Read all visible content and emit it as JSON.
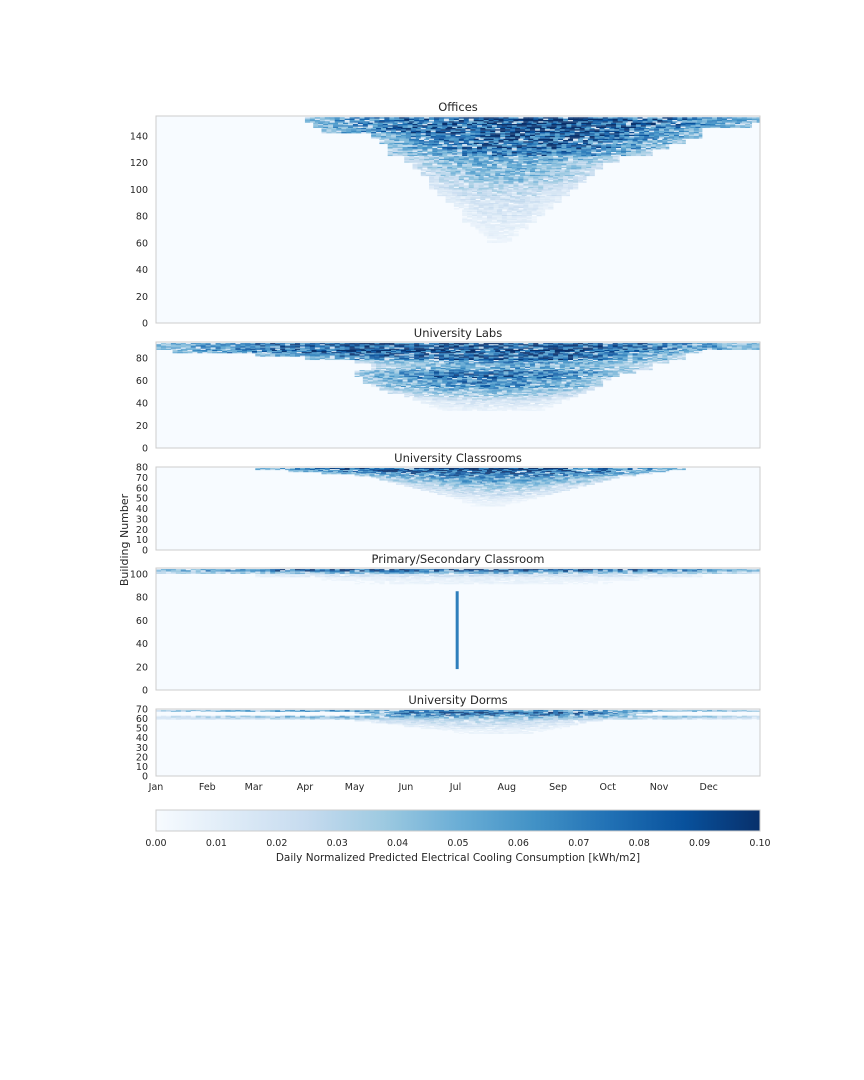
{
  "figure": {
    "ylabel": "Building Number",
    "colorbar_label": "Daily Normalized Predicted Electrical Cooling Consumption [kWh/m2]"
  },
  "chart_data": [
    {
      "type": "heatmap",
      "title": "Offices",
      "xlabel": "",
      "ylabel": "Building Number",
      "xlim": [
        0,
        365
      ],
      "ylim": [
        0,
        155
      ],
      "yticks": [
        0,
        20,
        40,
        60,
        80,
        100,
        120,
        140
      ],
      "z_range": [
        0.0,
        0.1
      ],
      "colormap": "Blues",
      "profile": {
        "rows_y": [
          154,
          150,
          146,
          142,
          138,
          134,
          130,
          125,
          120,
          115,
          110,
          105,
          100,
          95,
          90,
          85,
          80,
          75,
          70,
          65,
          60
        ],
        "peak_values": [
          0.1,
          0.1,
          0.1,
          0.095,
          0.09,
          0.09,
          0.08,
          0.06,
          0.055,
          0.05,
          0.045,
          0.035,
          0.03,
          0.025,
          0.02,
          0.02,
          0.015,
          0.012,
          0.01,
          0.008,
          0.005
        ],
        "active_start_day": [
          90,
          95,
          100,
          130,
          135,
          140,
          140,
          150,
          155,
          160,
          165,
          165,
          170,
          175,
          180,
          185,
          185,
          190,
          195,
          200,
          205
        ],
        "active_end_day": [
          365,
          360,
          330,
          330,
          320,
          310,
          300,
          280,
          270,
          265,
          260,
          255,
          250,
          245,
          240,
          235,
          230,
          225,
          220,
          215,
          210
        ]
      }
    },
    {
      "type": "heatmap",
      "title": "University Labs",
      "xlabel": "",
      "ylabel": "Building Number",
      "xlim": [
        0,
        365
      ],
      "ylim": [
        0,
        94
      ],
      "yticks": [
        0,
        20,
        40,
        60,
        80
      ],
      "z_range": [
        0.0,
        0.1
      ],
      "colormap": "Blues",
      "profile": {
        "rows_y": [
          93,
          90,
          87,
          84,
          81,
          78,
          75,
          72,
          69,
          66,
          63,
          60,
          57,
          54,
          51,
          48,
          45,
          42,
          39,
          36
        ],
        "peak_values": [
          0.1,
          0.1,
          0.1,
          0.095,
          0.09,
          0.07,
          0.06,
          0.06,
          0.08,
          0.085,
          0.08,
          0.075,
          0.07,
          0.06,
          0.05,
          0.04,
          0.03,
          0.02,
          0.015,
          0.01
        ],
        "active_start_day": [
          0,
          0,
          10,
          60,
          90,
          120,
          130,
          130,
          120,
          120,
          125,
          125,
          130,
          135,
          140,
          150,
          155,
          160,
          165,
          170
        ],
        "active_end_day": [
          365,
          365,
          330,
          320,
          320,
          310,
          300,
          300,
          290,
          280,
          275,
          270,
          270,
          265,
          260,
          255,
          250,
          245,
          240,
          235
        ]
      }
    },
    {
      "type": "heatmap",
      "title": "University Classrooms",
      "xlabel": "",
      "ylabel": "Building Number",
      "xlim": [
        0,
        365
      ],
      "ylim": [
        0,
        80
      ],
      "yticks": [
        0,
        10,
        20,
        30,
        40,
        50,
        60,
        70,
        80
      ],
      "z_range": [
        0.0,
        0.1
      ],
      "colormap": "Blues",
      "profile": {
        "rows_y": [
          79,
          77,
          75,
          73,
          71,
          69,
          67,
          65,
          63,
          61,
          59,
          57,
          55,
          53,
          51,
          49,
          47,
          45
        ],
        "peak_values": [
          0.1,
          0.1,
          0.09,
          0.08,
          0.07,
          0.06,
          0.06,
          0.05,
          0.045,
          0.04,
          0.035,
          0.03,
          0.025,
          0.02,
          0.015,
          0.012,
          0.01,
          0.008
        ],
        "active_start_day": [
          60,
          80,
          100,
          120,
          130,
          135,
          140,
          145,
          150,
          155,
          160,
          165,
          170,
          175,
          180,
          185,
          185,
          190
        ],
        "active_end_day": [
          320,
          310,
          300,
          290,
          280,
          275,
          270,
          265,
          260,
          255,
          250,
          245,
          240,
          235,
          230,
          225,
          220,
          215
        ]
      }
    },
    {
      "type": "heatmap",
      "title": "Primary/Secondary Classroom",
      "xlabel": "",
      "ylabel": "Building Number",
      "xlim": [
        0,
        365
      ],
      "ylim": [
        0,
        105
      ],
      "yticks": [
        0,
        20,
        40,
        60,
        80,
        100
      ],
      "z_range": [
        0.0,
        0.1
      ],
      "colormap": "Blues",
      "profile": {
        "rows_y": [
          104,
          102,
          100,
          97,
          94
        ],
        "peak_values": [
          0.1,
          0.06,
          0.02,
          0.01,
          0.008
        ],
        "active_start_day": [
          0,
          0,
          60,
          100,
          120
        ],
        "active_end_day": [
          365,
          365,
          330,
          300,
          280
        ],
        "column_feature": {
          "day": 182,
          "y_from": 18,
          "y_to": 85,
          "value": 0.07
        }
      }
    },
    {
      "type": "heatmap",
      "title": "University Dorms",
      "xlabel": "",
      "ylabel": "Building Number",
      "xlim": [
        0,
        365
      ],
      "ylim": [
        0,
        70
      ],
      "yticks": [
        0,
        10,
        20,
        30,
        40,
        50,
        60,
        70
      ],
      "xticks": [
        "Jan",
        "Feb",
        "Mar",
        "Apr",
        "May",
        "Jun",
        "Jul",
        "Aug",
        "Sep",
        "Oct",
        "Nov",
        "Dec"
      ],
      "xtick_days": [
        0,
        31,
        59,
        90,
        120,
        151,
        181,
        212,
        243,
        273,
        304,
        334
      ],
      "z_range": [
        0.0,
        0.1
      ],
      "colormap": "Blues",
      "profile": {
        "rows_y": [
          69,
          67,
          65,
          63,
          61,
          59,
          57,
          55,
          53,
          51,
          49,
          47
        ],
        "peak_values": [
          0.07,
          0.1,
          0.09,
          0.06,
          0.04,
          0.03,
          0.03,
          0.025,
          0.02,
          0.015,
          0.01,
          0.008
        ],
        "active_start_day": [
          0,
          120,
          130,
          0,
          0,
          120,
          130,
          140,
          150,
          160,
          170,
          180
        ],
        "active_end_day": [
          365,
          300,
          290,
          365,
          365,
          270,
          260,
          255,
          250,
          245,
          240,
          235
        ]
      }
    }
  ],
  "colorbar": {
    "ticks": [
      "0.00",
      "0.01",
      "0.02",
      "0.03",
      "0.04",
      "0.05",
      "0.06",
      "0.07",
      "0.08",
      "0.09",
      "0.10"
    ],
    "range": [
      0.0,
      0.1
    ],
    "colormap": "Blues",
    "colors": [
      "#f7fbff",
      "#deebf7",
      "#c6dbef",
      "#9ecae1",
      "#6baed6",
      "#4292c6",
      "#2171b5",
      "#08519c",
      "#08306b"
    ]
  }
}
